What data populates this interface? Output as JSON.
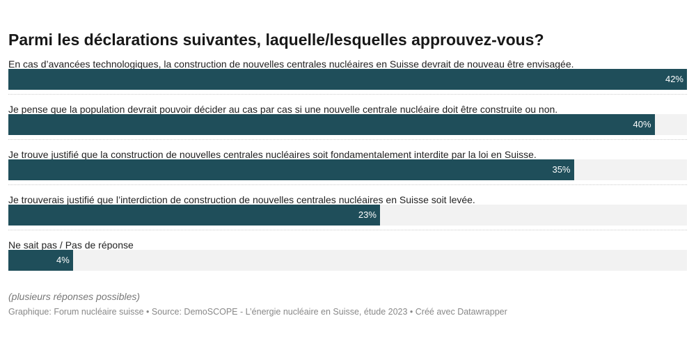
{
  "chart_data": {
    "type": "bar",
    "title": "Parmi les déclarations suivantes, laquelle/lesquelles approuvez-vous?",
    "categories": [
      "En cas d’avancées technologiques, la construction de nouvelles centrales nucléaires en Suisse devrait de nouveau être envisagée.",
      "Je pense que la population devrait pouvoir décider au cas par cas si une nouvelle centrale nucléaire doit être construite ou non.",
      "Je trouve justifié que la construction de nouvelles centrales nucléaires soit fondamentalement interdite par la loi en Suisse.",
      "Je trouverais justifié que l’interdiction de construction de nouvelles centrales nucléaires en Suisse soit levée.",
      "Ne sait pas / Pas de réponse"
    ],
    "values": [
      42,
      40,
      35,
      23,
      4
    ],
    "value_labels": [
      "42%",
      "40%",
      "35%",
      "23%",
      "4%"
    ],
    "xlim": [
      0,
      42
    ],
    "bar_color": "#1f4e5a",
    "note": "(plusieurs réponses possibles)",
    "source": "Graphique: Forum nucléaire suisse • Source: DemoSCOPE - L’énergie nucléaire en Suisse, étude 2023 • Créé avec Datawrapper"
  }
}
